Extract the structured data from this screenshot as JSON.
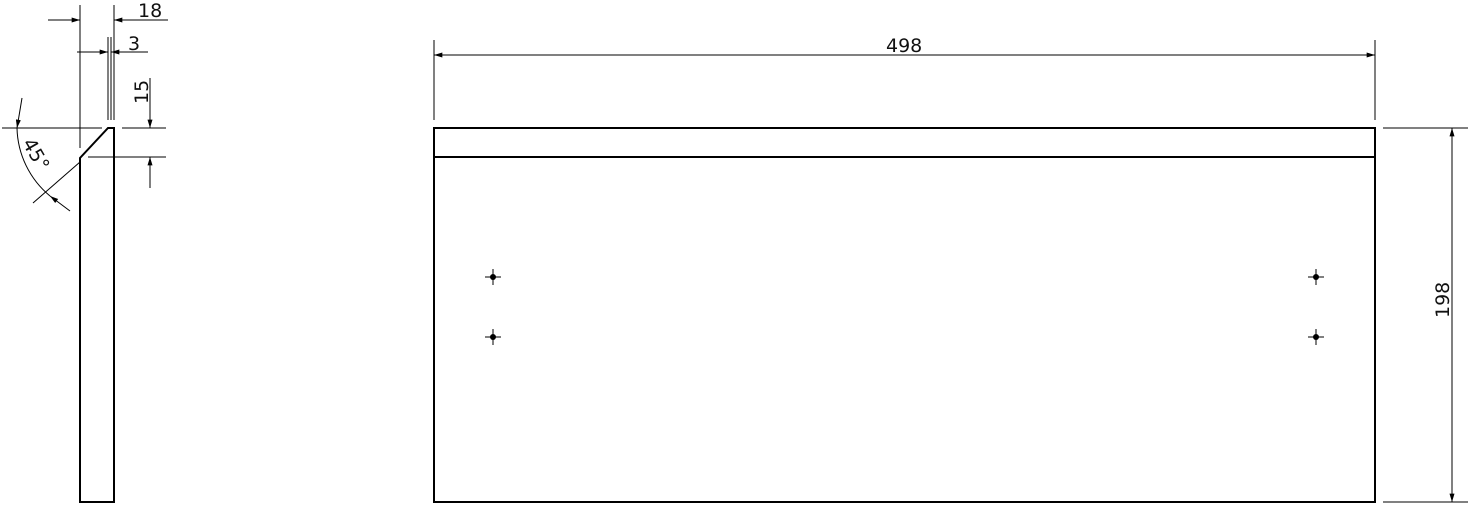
{
  "drawing": {
    "side_view": {
      "dimensions": {
        "thickness": "18",
        "offset": "3",
        "chamfer_height": "15",
        "chamfer_angle": "45°"
      }
    },
    "front_view": {
      "dimensions": {
        "width": "498",
        "height": "198"
      },
      "hole_marks": 4
    },
    "line_color": "#000000"
  }
}
